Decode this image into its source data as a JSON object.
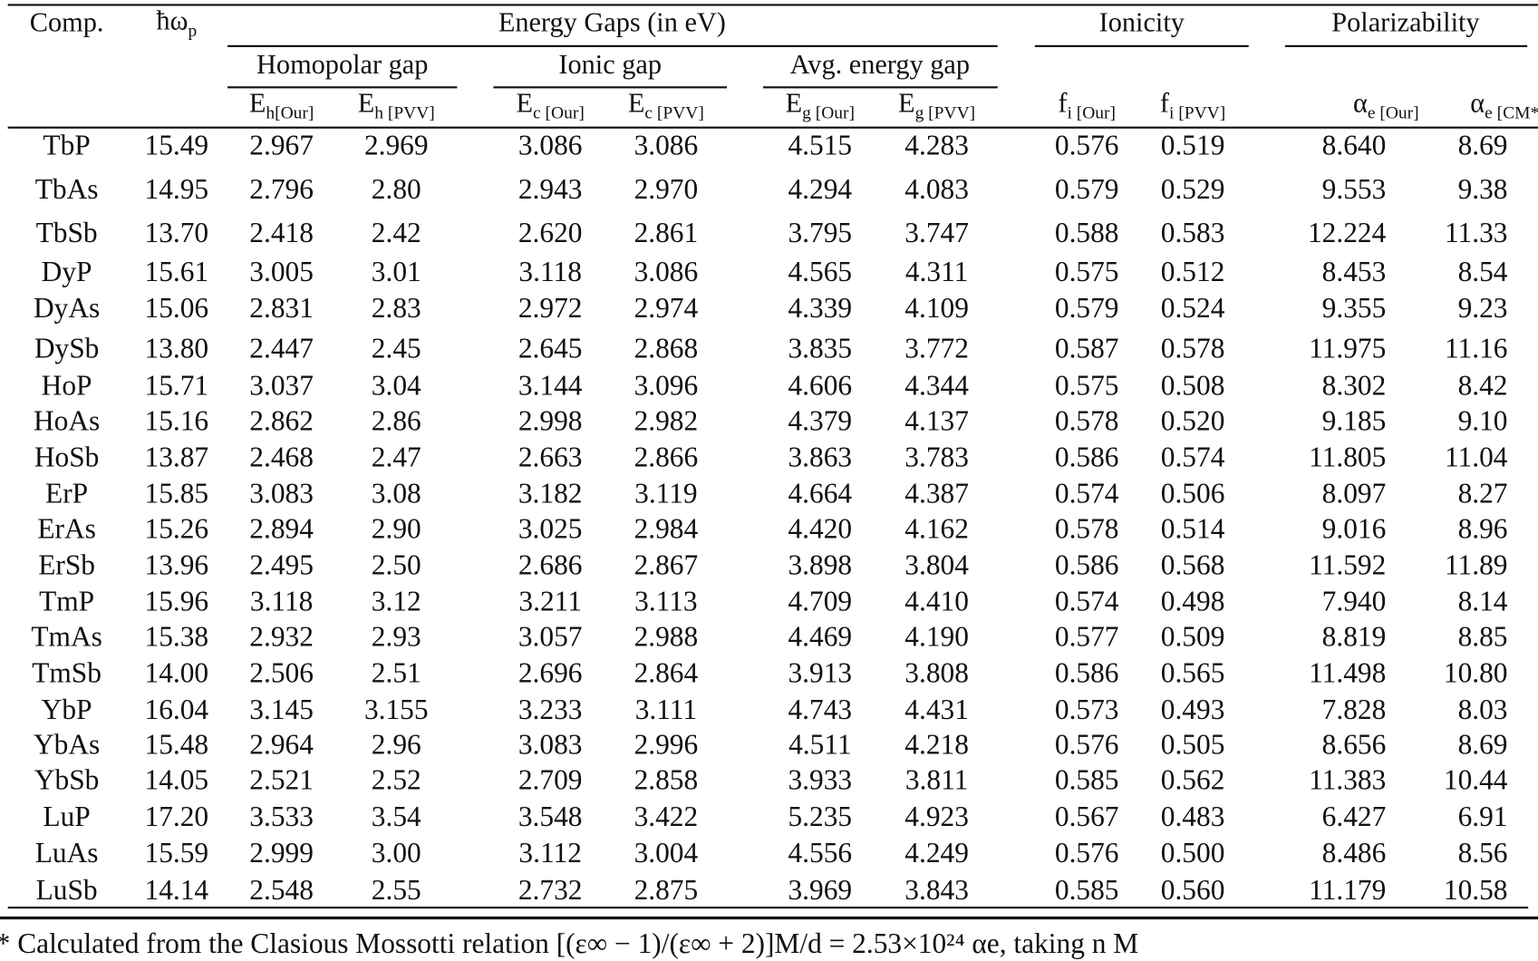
{
  "header": {
    "comp": "Comp.",
    "plasmon": {
      "main": "ħω",
      "sub": "p"
    },
    "energy_gaps": "Energy Gaps (in eV)",
    "ionicity": "Ionicity",
    "polarizability": "Polarizability",
    "homopolar_gap": "Homopolar gap",
    "ionic_gap": "Ionic gap",
    "avg_energy_gap": "Avg. energy gap",
    "columns": [
      {
        "main": "E",
        "sub": "h[Our]"
      },
      {
        "main": "E",
        "sub": "h [PVV]"
      },
      {
        "main": "E",
        "sub": "c [Our]"
      },
      {
        "main": "E",
        "sub": "c [PVV]"
      },
      {
        "main": "E",
        "sub": "g [Our]"
      },
      {
        "main": "E",
        "sub": "g [PVV]"
      },
      {
        "main": "f",
        "sub": "i [Our]"
      },
      {
        "main": "f",
        "sub": "i [PVV]"
      },
      {
        "main": "α",
        "sub": "e [Our]"
      },
      {
        "main": "α",
        "sub": "e [CM*]"
      }
    ]
  },
  "rows": [
    [
      "TbP",
      "15.49",
      "2.967",
      "2.969",
      "3.086",
      "3.086",
      "4.515",
      "4.283",
      "0.576",
      "0.519",
      "8.640",
      "8.69"
    ],
    [
      "TbAs",
      "14.95",
      "2.796",
      "2.80",
      "2.943",
      "2.970",
      "4.294",
      "4.083",
      "0.579",
      "0.529",
      "9.553",
      "9.38"
    ],
    [
      "TbSb",
      "13.70",
      "2.418",
      "2.42",
      "2.620",
      "2.861",
      "3.795",
      "3.747",
      "0.588",
      "0.583",
      "12.224",
      "11.33"
    ],
    [
      "DyP",
      "15.61",
      "3.005",
      "3.01",
      "3.118",
      "3.086",
      "4.565",
      "4.311",
      "0.575",
      "0.512",
      "8.453",
      "8.54"
    ],
    [
      "DyAs",
      "15.06",
      "2.831",
      "2.83",
      "2.972",
      "2.974",
      "4.339",
      "4.109",
      "0.579",
      "0.524",
      "9.355",
      "9.23"
    ],
    [
      "DySb",
      "13.80",
      "2.447",
      "2.45",
      "2.645",
      "2.868",
      "3.835",
      "3.772",
      "0.587",
      "0.578",
      "11.975",
      "11.16"
    ],
    [
      "HoP",
      "15.71",
      "3.037",
      "3.04",
      "3.144",
      "3.096",
      "4.606",
      "4.344",
      "0.575",
      "0.508",
      "8.302",
      "8.42"
    ],
    [
      "HoAs",
      "15.16",
      "2.862",
      "2.86",
      "2.998",
      "2.982",
      "4.379",
      "4.137",
      "0.578",
      "0.520",
      "9.185",
      "9.10"
    ],
    [
      "HoSb",
      "13.87",
      "2.468",
      "2.47",
      "2.663",
      "2.866",
      "3.863",
      "3.783",
      "0.586",
      "0.574",
      "11.805",
      "11.04"
    ],
    [
      "ErP",
      "15.85",
      "3.083",
      "3.08",
      "3.182",
      "3.119",
      "4.664",
      "4.387",
      "0.574",
      "0.506",
      "8.097",
      "8.27"
    ],
    [
      "ErAs",
      "15.26",
      "2.894",
      "2.90",
      "3.025",
      "2.984",
      "4.420",
      "4.162",
      "0.578",
      "0.514",
      "9.016",
      "8.96"
    ],
    [
      "ErSb",
      "13.96",
      "2.495",
      "2.50",
      "2.686",
      "2.867",
      "3.898",
      "3.804",
      "0.586",
      "0.568",
      "11.592",
      "11.89"
    ],
    [
      "TmP",
      "15.96",
      "3.118",
      "3.12",
      "3.211",
      "3.113",
      "4.709",
      "4.410",
      "0.574",
      "0.498",
      "7.940",
      "8.14"
    ],
    [
      "TmAs",
      "15.38",
      "2.932",
      "2.93",
      "3.057",
      "2.988",
      "4.469",
      "4.190",
      "0.577",
      "0.509",
      "8.819",
      "8.85"
    ],
    [
      "TmSb",
      "14.00",
      "2.506",
      "2.51",
      "2.696",
      "2.864",
      "3.913",
      "3.808",
      "0.586",
      "0.565",
      "11.498",
      "10.80"
    ],
    [
      "YbP",
      "16.04",
      "3.145",
      "3.155",
      "3.233",
      "3.111",
      "4.743",
      "4.431",
      "0.573",
      "0.493",
      "7.828",
      "8.03"
    ],
    [
      "YbAs",
      "15.48",
      "2.964",
      "2.96",
      "3.083",
      "2.996",
      "4.511",
      "4.218",
      "0.576",
      "0.505",
      "8.656",
      "8.69"
    ],
    [
      "YbSb",
      "14.05",
      "2.521",
      "2.52",
      "2.709",
      "2.858",
      "3.933",
      "3.811",
      "0.585",
      "0.562",
      "11.383",
      "10.44"
    ],
    [
      "LuP",
      "17.20",
      "3.533",
      "3.54",
      "3.548",
      "3.422",
      "5.235",
      "4.923",
      "0.567",
      "0.483",
      "6.427",
      "6.91"
    ],
    [
      "LuAs",
      "15.59",
      "2.999",
      "3.00",
      "3.112",
      "3.004",
      "4.556",
      "4.249",
      "0.576",
      "0.500",
      "8.486",
      "8.56"
    ],
    [
      "LuSb",
      "14.14",
      "2.548",
      "2.55",
      "2.732",
      "2.875",
      "3.969",
      "3.843",
      "0.585",
      "0.560",
      "11.179",
      "10.58"
    ]
  ],
  "footnote": "* Calculated from the Clasious Mossotti relation [(ε∞ − 1)/(ε∞ + 2)]M/d = 2.53×10²⁴ αe, taking n M"
}
